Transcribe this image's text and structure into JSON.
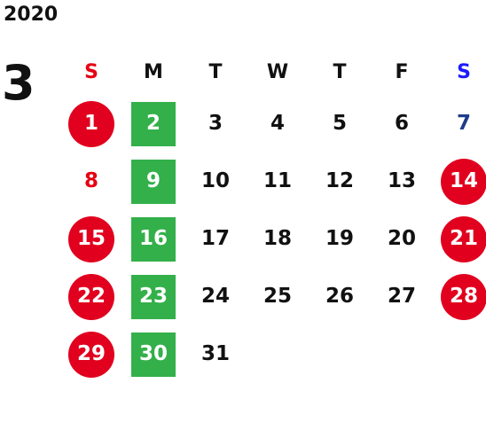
{
  "calendar": {
    "year": "2020",
    "month": "3",
    "weekday_labels": [
      "S",
      "M",
      "T",
      "W",
      "T",
      "F",
      "S"
    ],
    "weekday_colors": [
      "#e60012",
      "#111111",
      "#111111",
      "#111111",
      "#111111",
      "#111111",
      "#1a1aff"
    ],
    "start_weekday": 0,
    "colors": {
      "holiday_circle": "#e1001e",
      "monday_square": "#33b04a",
      "sunday_text": "#e60012",
      "saturday_text": "#1f3c8a",
      "default_text": "#111111"
    },
    "days": [
      {
        "day": "1",
        "style": "circle"
      },
      {
        "day": "2",
        "style": "square"
      },
      {
        "day": "3",
        "style": "plain"
      },
      {
        "day": "4",
        "style": "plain"
      },
      {
        "day": "5",
        "style": "plain"
      },
      {
        "day": "6",
        "style": "plain"
      },
      {
        "day": "7",
        "style": "saturday"
      },
      {
        "day": "8",
        "style": "sunday"
      },
      {
        "day": "9",
        "style": "square"
      },
      {
        "day": "10",
        "style": "plain"
      },
      {
        "day": "11",
        "style": "plain"
      },
      {
        "day": "12",
        "style": "plain"
      },
      {
        "day": "13",
        "style": "plain"
      },
      {
        "day": "14",
        "style": "circle"
      },
      {
        "day": "15",
        "style": "circle"
      },
      {
        "day": "16",
        "style": "square"
      },
      {
        "day": "17",
        "style": "plain"
      },
      {
        "day": "18",
        "style": "plain"
      },
      {
        "day": "19",
        "style": "plain"
      },
      {
        "day": "20",
        "style": "plain"
      },
      {
        "day": "21",
        "style": "circle"
      },
      {
        "day": "22",
        "style": "circle"
      },
      {
        "day": "23",
        "style": "square"
      },
      {
        "day": "24",
        "style": "plain"
      },
      {
        "day": "25",
        "style": "plain"
      },
      {
        "day": "26",
        "style": "plain"
      },
      {
        "day": "27",
        "style": "plain"
      },
      {
        "day": "28",
        "style": "circle"
      },
      {
        "day": "29",
        "style": "circle"
      },
      {
        "day": "30",
        "style": "square"
      },
      {
        "day": "31",
        "style": "plain"
      }
    ]
  }
}
